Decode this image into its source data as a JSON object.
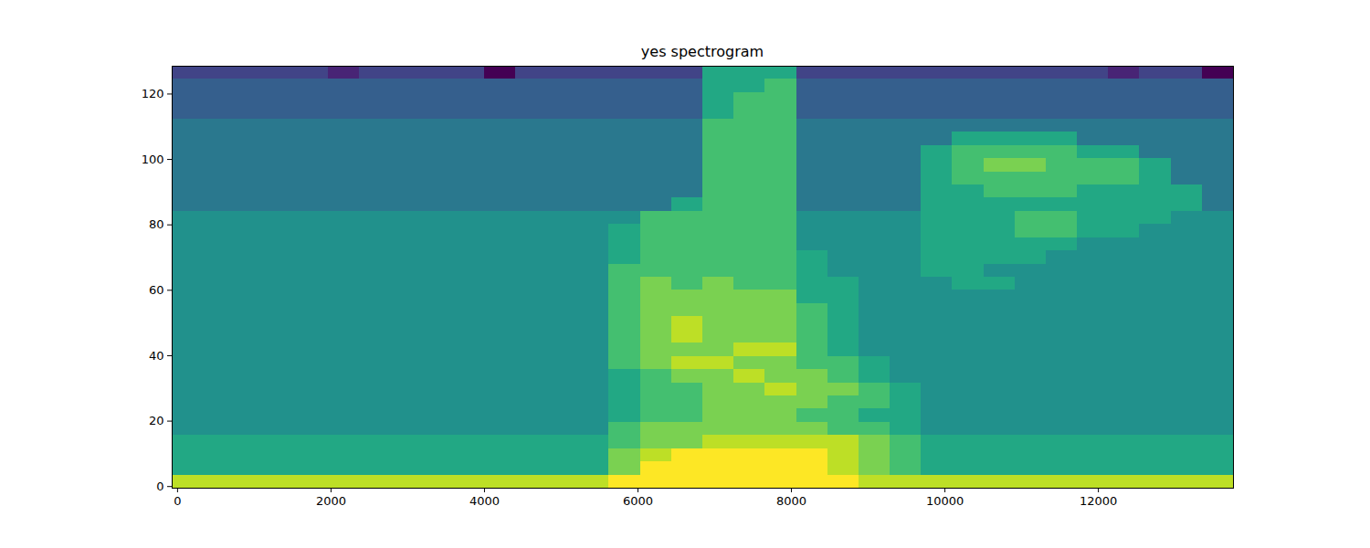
{
  "chart_data": {
    "type": "heatmap",
    "title": "yes spectrogram",
    "color": "viridis",
    "xlim": [
      -70,
      13760
    ],
    "ylim": [
      -0.5,
      128.5
    ],
    "xticks": [
      0,
      2000,
      4000,
      6000,
      8000,
      10000,
      12000
    ],
    "yticks": [
      0,
      20,
      40,
      60,
      80,
      100,
      120
    ],
    "cells": [
      [
        9,
        9,
        9,
        9,
        9,
        9,
        9,
        9,
        9,
        9,
        9,
        9,
        9,
        9,
        10,
        10,
        10,
        10,
        10,
        10,
        10,
        10,
        9,
        9,
        9,
        9,
        9,
        9,
        9,
        9,
        9,
        9,
        9,
        9
      ],
      [
        6,
        6,
        6,
        6,
        6,
        6,
        6,
        6,
        6,
        6,
        6,
        6,
        6,
        6,
        8,
        10,
        10,
        10,
        10,
        10,
        10,
        9,
        8,
        7,
        6,
        6,
        6,
        6,
        6,
        6,
        6,
        6,
        6,
        6
      ],
      [
        6,
        6,
        6,
        6,
        6,
        6,
        6,
        6,
        6,
        6,
        6,
        6,
        6,
        6,
        8,
        9,
        10,
        10,
        10,
        10,
        10,
        9,
        8,
        7,
        6,
        6,
        6,
        6,
        6,
        6,
        6,
        6,
        6,
        6
      ],
      [
        6,
        6,
        6,
        6,
        6,
        6,
        6,
        6,
        6,
        6,
        6,
        6,
        6,
        6,
        7,
        8,
        8,
        9,
        9,
        9,
        9,
        9,
        8,
        7,
        6,
        6,
        6,
        6,
        6,
        6,
        6,
        6,
        6,
        6
      ],
      [
        5,
        5,
        5,
        5,
        5,
        5,
        5,
        5,
        5,
        5,
        5,
        5,
        5,
        5,
        7,
        8,
        8,
        8,
        8,
        8,
        8,
        7,
        7,
        6,
        5,
        5,
        5,
        5,
        5,
        5,
        5,
        5,
        5,
        5
      ],
      [
        5,
        5,
        5,
        5,
        5,
        5,
        5,
        5,
        5,
        5,
        5,
        5,
        5,
        5,
        6,
        7,
        7,
        8,
        8,
        8,
        7,
        7,
        6,
        6,
        5,
        5,
        5,
        5,
        5,
        5,
        5,
        5,
        5,
        5
      ],
      [
        5,
        5,
        5,
        5,
        5,
        5,
        5,
        5,
        5,
        5,
        5,
        5,
        5,
        5,
        6,
        7,
        7,
        8,
        8,
        8,
        8,
        7,
        7,
        6,
        5,
        5,
        5,
        5,
        5,
        5,
        5,
        5,
        5,
        5
      ],
      [
        5,
        5,
        5,
        5,
        5,
        5,
        5,
        5,
        5,
        5,
        5,
        5,
        5,
        5,
        6,
        7,
        7,
        8,
        8,
        9,
        8,
        8,
        7,
        6,
        5,
        5,
        5,
        5,
        5,
        5,
        5,
        5,
        5,
        5
      ],
      [
        5,
        5,
        5,
        5,
        5,
        5,
        5,
        5,
        5,
        5,
        5,
        5,
        5,
        5,
        6,
        7,
        8,
        8,
        9,
        8,
        8,
        7,
        6,
        5,
        5,
        5,
        5,
        5,
        5,
        5,
        5,
        5,
        5,
        5
      ],
      [
        5,
        5,
        5,
        5,
        5,
        5,
        5,
        5,
        5,
        5,
        5,
        5,
        5,
        5,
        7,
        8,
        9,
        9,
        8,
        8,
        7,
        7,
        6,
        5,
        5,
        5,
        5,
        5,
        5,
        5,
        5,
        5,
        5,
        5
      ],
      [
        5,
        5,
        5,
        5,
        5,
        5,
        5,
        5,
        5,
        5,
        5,
        5,
        5,
        5,
        7,
        8,
        8,
        8,
        9,
        9,
        7,
        6,
        5,
        5,
        5,
        5,
        5,
        5,
        5,
        5,
        5,
        5,
        5,
        5
      ],
      [
        5,
        5,
        5,
        5,
        5,
        5,
        5,
        5,
        5,
        5,
        5,
        5,
        5,
        5,
        7,
        8,
        9,
        8,
        8,
        8,
        7,
        6,
        5,
        5,
        5,
        5,
        5,
        5,
        5,
        5,
        5,
        5,
        5,
        5
      ],
      [
        5,
        5,
        5,
        5,
        5,
        5,
        5,
        5,
        5,
        5,
        5,
        5,
        5,
        5,
        7,
        8,
        9,
        8,
        8,
        8,
        7,
        6,
        5,
        5,
        5,
        5,
        5,
        5,
        5,
        5,
        5,
        5,
        5,
        5
      ],
      [
        5,
        5,
        5,
        5,
        5,
        5,
        5,
        5,
        5,
        5,
        5,
        5,
        5,
        5,
        7,
        8,
        8,
        8,
        8,
        8,
        7,
        6,
        5,
        5,
        5,
        5,
        5,
        5,
        5,
        5,
        5,
        5,
        5,
        5
      ],
      [
        5,
        5,
        5,
        5,
        5,
        5,
        5,
        5,
        5,
        5,
        5,
        5,
        5,
        5,
        7,
        8,
        8,
        8,
        8,
        8,
        6,
        6,
        5,
        5,
        5,
        5,
        5,
        5,
        5,
        5,
        5,
        5,
        5,
        5
      ],
      [
        5,
        5,
        5,
        5,
        5,
        5,
        5,
        5,
        5,
        5,
        5,
        5,
        5,
        5,
        7,
        8,
        7,
        8,
        7,
        7,
        6,
        6,
        5,
        5,
        5,
        6,
        6,
        5,
        5,
        5,
        5,
        5,
        5,
        5
      ],
      [
        5,
        5,
        5,
        5,
        5,
        5,
        5,
        5,
        5,
        5,
        5,
        5,
        5,
        5,
        7,
        7,
        7,
        7,
        7,
        7,
        6,
        5,
        5,
        5,
        6,
        6,
        5,
        5,
        5,
        5,
        5,
        5,
        5,
        5
      ],
      [
        5,
        5,
        5,
        5,
        5,
        5,
        5,
        5,
        5,
        5,
        5,
        5,
        5,
        5,
        6,
        7,
        7,
        7,
        7,
        7,
        6,
        5,
        5,
        5,
        6,
        6,
        6,
        6,
        5,
        5,
        5,
        5,
        5,
        5
      ],
      [
        5,
        5,
        5,
        5,
        5,
        5,
        5,
        5,
        5,
        5,
        5,
        5,
        5,
        5,
        6,
        7,
        7,
        7,
        7,
        7,
        5,
        5,
        5,
        5,
        6,
        6,
        6,
        6,
        6,
        5,
        5,
        5,
        5,
        5
      ],
      [
        5,
        5,
        5,
        5,
        5,
        5,
        5,
        5,
        5,
        5,
        5,
        5,
        5,
        5,
        6,
        7,
        7,
        7,
        7,
        7,
        5,
        5,
        5,
        5,
        6,
        6,
        6,
        7,
        7,
        6,
        6,
        5,
        5,
        5
      ],
      [
        5,
        5,
        5,
        5,
        5,
        5,
        5,
        5,
        5,
        5,
        5,
        5,
        5,
        5,
        5,
        7,
        7,
        7,
        7,
        7,
        5,
        5,
        5,
        5,
        6,
        6,
        6,
        7,
        7,
        6,
        6,
        6,
        5,
        5
      ],
      [
        4,
        4,
        4,
        4,
        4,
        4,
        4,
        4,
        4,
        4,
        4,
        4,
        4,
        4,
        4,
        4,
        6,
        7,
        7,
        7,
        4,
        4,
        4,
        4,
        6,
        6,
        6,
        6,
        6,
        6,
        6,
        6,
        6,
        4
      ],
      [
        4,
        4,
        4,
        4,
        4,
        4,
        4,
        4,
        4,
        4,
        4,
        4,
        4,
        4,
        4,
        4,
        4,
        7,
        7,
        7,
        4,
        4,
        4,
        4,
        6,
        6,
        7,
        7,
        7,
        6,
        6,
        6,
        6,
        4
      ],
      [
        4,
        4,
        4,
        4,
        4,
        4,
        4,
        4,
        4,
        4,
        4,
        4,
        4,
        4,
        4,
        4,
        4,
        7,
        7,
        7,
        4,
        4,
        4,
        4,
        6,
        7,
        7,
        7,
        7,
        7,
        7,
        6,
        4,
        4
      ],
      [
        4,
        4,
        4,
        4,
        4,
        4,
        4,
        4,
        4,
        4,
        4,
        4,
        4,
        4,
        4,
        4,
        4,
        7,
        7,
        7,
        4,
        4,
        4,
        4,
        6,
        7,
        8,
        8,
        7,
        7,
        7,
        6,
        4,
        4
      ],
      [
        4,
        4,
        4,
        4,
        4,
        4,
        4,
        4,
        4,
        4,
        4,
        4,
        4,
        4,
        4,
        4,
        4,
        7,
        7,
        7,
        4,
        4,
        4,
        4,
        6,
        7,
        7,
        7,
        7,
        6,
        6,
        4,
        4,
        4
      ],
      [
        4,
        4,
        4,
        4,
        4,
        4,
        4,
        4,
        4,
        4,
        4,
        4,
        4,
        4,
        4,
        4,
        4,
        7,
        7,
        7,
        4,
        4,
        4,
        4,
        4,
        6,
        6,
        6,
        6,
        4,
        4,
        4,
        4,
        4
      ],
      [
        4,
        4,
        4,
        4,
        4,
        4,
        4,
        4,
        4,
        4,
        4,
        4,
        4,
        4,
        4,
        4,
        4,
        7,
        7,
        7,
        4,
        4,
        4,
        4,
        4,
        4,
        4,
        4,
        4,
        4,
        4,
        4,
        4,
        4
      ],
      [
        3,
        3,
        3,
        3,
        3,
        3,
        3,
        3,
        3,
        3,
        3,
        3,
        3,
        3,
        3,
        3,
        3,
        6,
        7,
        7,
        3,
        3,
        3,
        3,
        3,
        3,
        3,
        3,
        3,
        3,
        3,
        3,
        3,
        3
      ],
      [
        3,
        3,
        3,
        3,
        3,
        3,
        3,
        3,
        3,
        3,
        3,
        3,
        3,
        3,
        3,
        3,
        3,
        6,
        7,
        7,
        3,
        3,
        3,
        3,
        3,
        3,
        3,
        3,
        3,
        3,
        3,
        3,
        3,
        3
      ],
      [
        3,
        3,
        3,
        3,
        3,
        3,
        3,
        3,
        3,
        3,
        3,
        3,
        3,
        3,
        3,
        3,
        3,
        6,
        6,
        7,
        3,
        3,
        3,
        3,
        3,
        3,
        3,
        3,
        3,
        3,
        3,
        3,
        3,
        3
      ],
      [
        2,
        2,
        2,
        2,
        2,
        1,
        2,
        2,
        2,
        2,
        0,
        2,
        2,
        2,
        2,
        2,
        2,
        6,
        6,
        6,
        2,
        2,
        2,
        2,
        2,
        2,
        2,
        2,
        2,
        2,
        1,
        2,
        2,
        0
      ]
    ]
  }
}
